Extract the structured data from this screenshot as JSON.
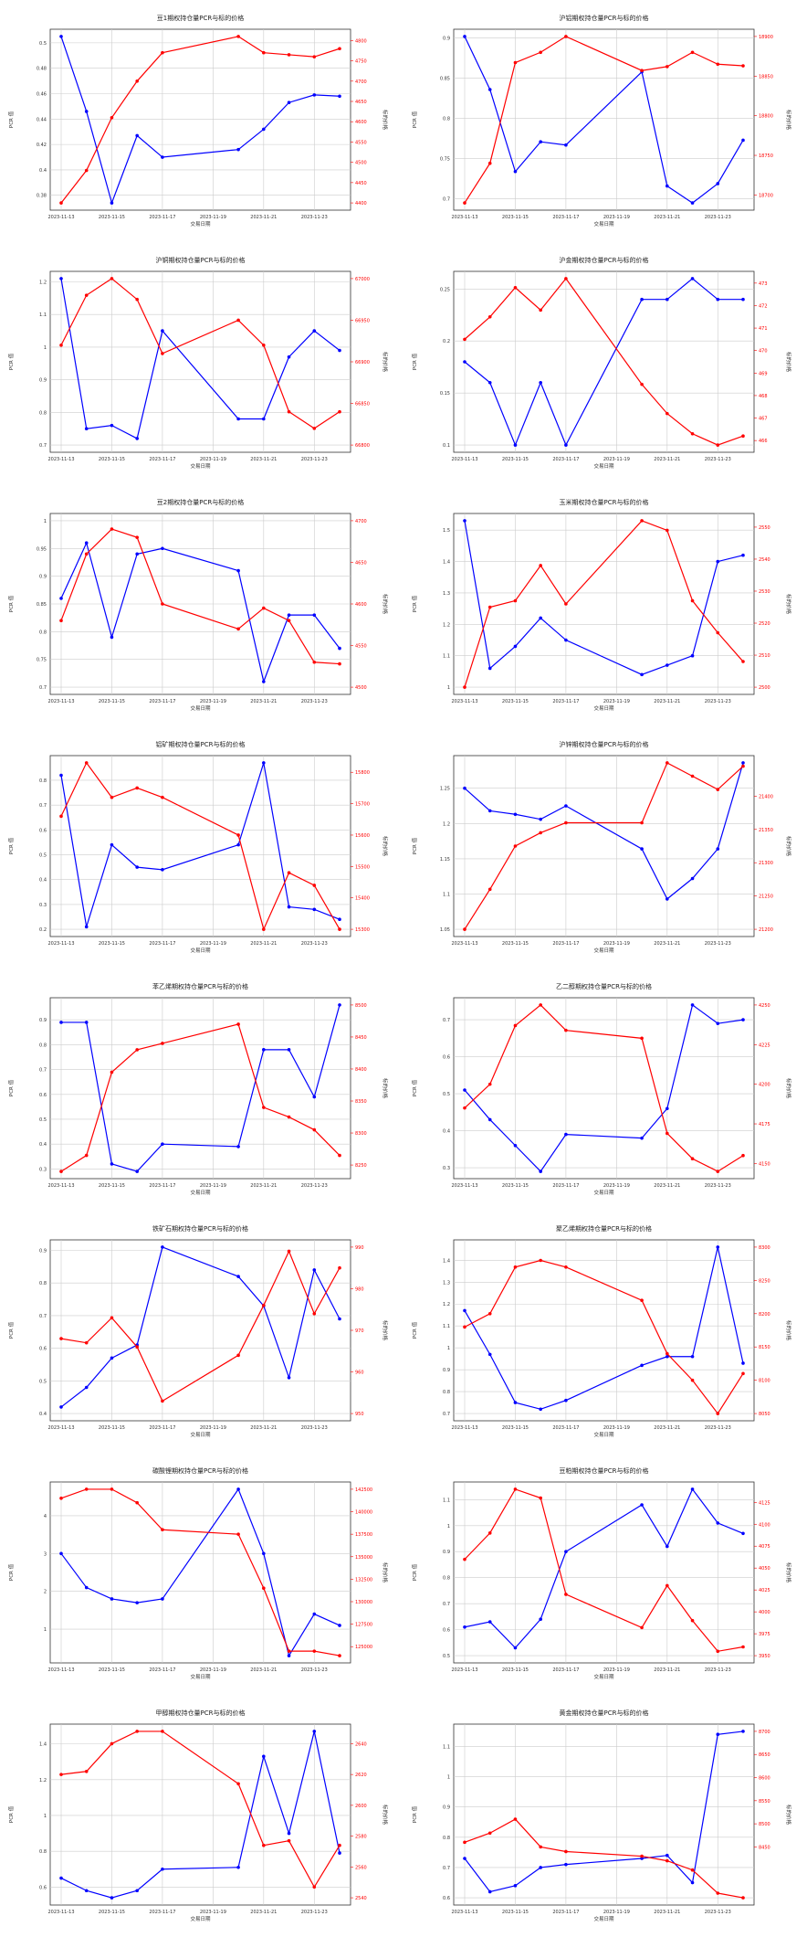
{
  "colors": {
    "left": "#0000ff",
    "right": "#ff0000",
    "grid": "#cccccc",
    "axis": "#333333"
  },
  "common": {
    "xticks": [
      "2023-11-13",
      "2023-11-15",
      "2023-11-17",
      "2023-11-19",
      "2023-11-21",
      "2023-11-23"
    ],
    "xlabel": "交易日期",
    "ylabel_left": "PCR 值",
    "ylabel_right": "标的价格"
  },
  "chart_data": [
    {
      "type": "line",
      "title": "豆1期权持仓量PCR与标的价格",
      "x": [
        "2023-11-13",
        "2023-11-14",
        "2023-11-15",
        "2023-11-16",
        "2023-11-17",
        "2023-11-20",
        "2023-11-21",
        "2023-11-22",
        "2023-11-23",
        "2023-11-24"
      ],
      "left_ticks": [
        0.38,
        0.4,
        0.42,
        0.44,
        0.46,
        0.48,
        0.5
      ],
      "right_ticks": [
        4400,
        4450,
        4500,
        4550,
        4600,
        4650,
        4700,
        4750,
        4800
      ],
      "series": [
        {
          "axis": "left",
          "values": [
            0.505,
            0.446,
            0.374,
            0.427,
            0.41,
            0.416,
            0.432,
            0.453,
            0.459,
            0.458
          ]
        },
        {
          "axis": "right",
          "values": [
            4400,
            4480,
            4610,
            4700,
            4770,
            4810,
            4770,
            4765,
            4760,
            4780
          ]
        }
      ]
    },
    {
      "type": "line",
      "title": "沪铝期权持仓量PCR与标的价格",
      "x": [
        "2023-11-13",
        "2023-11-14",
        "2023-11-15",
        "2023-11-16",
        "2023-11-17",
        "2023-11-20",
        "2023-11-21",
        "2023-11-22",
        "2023-11-23",
        "2023-11-24"
      ],
      "left_ticks": [
        0.7,
        0.75,
        0.8,
        0.85,
        0.9
      ],
      "right_ticks": [
        18700,
        18750,
        18800,
        18850,
        18900
      ],
      "series": [
        {
          "axis": "left",
          "values": [
            0.902,
            0.836,
            0.734,
            0.771,
            0.767,
            0.858,
            0.716,
            0.695,
            0.719,
            0.773
          ]
        },
        {
          "axis": "right",
          "values": [
            18690,
            18740,
            18867,
            18880,
            18900,
            18857,
            18862,
            18880,
            18865,
            18863
          ]
        }
      ]
    },
    {
      "type": "line",
      "title": "沪铜期权持仓量PCR与标的价格",
      "x": [
        "2023-11-13",
        "2023-11-14",
        "2023-11-15",
        "2023-11-16",
        "2023-11-17",
        "2023-11-20",
        "2023-11-21",
        "2023-11-22",
        "2023-11-23",
        "2023-11-24"
      ],
      "left_ticks": [
        0.7,
        0.8,
        0.9,
        1.0,
        1.1,
        1.2
      ],
      "right_ticks": [
        66800,
        66850,
        66900,
        66950,
        67000
      ],
      "series": [
        {
          "axis": "left",
          "values": [
            1.21,
            0.75,
            0.76,
            0.72,
            1.05,
            0.78,
            0.78,
            0.97,
            1.05,
            0.99
          ]
        },
        {
          "axis": "right",
          "values": [
            66920,
            66980,
            67000,
            66975,
            66910,
            66950,
            66920,
            66840,
            66820,
            66840
          ]
        }
      ]
    },
    {
      "type": "line",
      "title": "沪金期权持仓量PCR与标的价格",
      "x": [
        "2023-11-13",
        "2023-11-14",
        "2023-11-15",
        "2023-11-16",
        "2023-11-17",
        "2023-11-20",
        "2023-11-21",
        "2023-11-22",
        "2023-11-23",
        "2023-11-24"
      ],
      "left_ticks": [
        0.1,
        0.15,
        0.2,
        0.25
      ],
      "right_ticks": [
        466,
        467,
        468,
        469,
        470,
        471,
        472,
        473
      ],
      "series": [
        {
          "axis": "left",
          "values": [
            0.18,
            0.16,
            0.1,
            0.16,
            0.1,
            0.24,
            0.24,
            0.26,
            0.24,
            0.24
          ]
        },
        {
          "axis": "right",
          "values": [
            470.5,
            471.5,
            472.8,
            471.8,
            473.2,
            468.5,
            467.2,
            466.3,
            465.8,
            466.2
          ]
        }
      ]
    },
    {
      "type": "line",
      "title": "豆2期权持仓量PCR与标的价格",
      "x": [
        "2023-11-13",
        "2023-11-14",
        "2023-11-15",
        "2023-11-16",
        "2023-11-17",
        "2023-11-20",
        "2023-11-21",
        "2023-11-22",
        "2023-11-23",
        "2023-11-24"
      ],
      "left_ticks": [
        0.7,
        0.75,
        0.8,
        0.85,
        0.9,
        0.95,
        1.0
      ],
      "right_ticks": [
        4500,
        4550,
        4600,
        4650,
        4700
      ],
      "series": [
        {
          "axis": "left",
          "values": [
            0.86,
            0.96,
            0.79,
            0.94,
            0.95,
            0.91,
            0.71,
            0.83,
            0.83,
            0.77
          ]
        },
        {
          "axis": "right",
          "values": [
            4580,
            4660,
            4690,
            4680,
            4600,
            4570,
            4595,
            4580,
            4530,
            4528
          ]
        }
      ]
    },
    {
      "type": "line",
      "title": "玉米期权持仓量PCR与标的价格",
      "x": [
        "2023-11-13",
        "2023-11-14",
        "2023-11-15",
        "2023-11-16",
        "2023-11-17",
        "2023-11-20",
        "2023-11-21",
        "2023-11-22",
        "2023-11-23",
        "2023-11-24"
      ],
      "left_ticks": [
        1.0,
        1.1,
        1.2,
        1.3,
        1.4,
        1.5
      ],
      "right_ticks": [
        2500,
        2510,
        2520,
        2530,
        2540,
        2550
      ],
      "series": [
        {
          "axis": "left",
          "values": [
            1.53,
            1.06,
            1.13,
            1.22,
            1.15,
            1.04,
            1.07,
            1.1,
            1.4,
            1.42
          ]
        },
        {
          "axis": "right",
          "values": [
            2500,
            2525,
            2527,
            2538,
            2526,
            2552,
            2549,
            2527,
            2517,
            2508
          ]
        }
      ]
    },
    {
      "type": "line",
      "title": "铝矿期权持仓量PCR与标的价格",
      "x": [
        "2023-11-13",
        "2023-11-14",
        "2023-11-15",
        "2023-11-16",
        "2023-11-17",
        "2023-11-20",
        "2023-11-21",
        "2023-11-22",
        "2023-11-23",
        "2023-11-24"
      ],
      "left_ticks": [
        0.2,
        0.3,
        0.4,
        0.5,
        0.6,
        0.7,
        0.8
      ],
      "right_ticks": [
        15300,
        15400,
        15500,
        15600,
        15700,
        15800
      ],
      "series": [
        {
          "axis": "left",
          "values": [
            0.82,
            0.21,
            0.54,
            0.45,
            0.44,
            0.54,
            0.87,
            0.29,
            0.28,
            0.24
          ]
        },
        {
          "axis": "right",
          "values": [
            15660,
            15830,
            15720,
            15750,
            15720,
            15600,
            15300,
            15480,
            15440,
            15300
          ]
        }
      ]
    },
    {
      "type": "line",
      "title": "沪锌期权持仓量PCR与标的价格",
      "x": [
        "2023-11-13",
        "2023-11-14",
        "2023-11-15",
        "2023-11-16",
        "2023-11-17",
        "2023-11-20",
        "2023-11-21",
        "2023-11-22",
        "2023-11-23",
        "2023-11-24"
      ],
      "left_ticks": [
        1.05,
        1.1,
        1.15,
        1.2,
        1.25
      ],
      "right_ticks": [
        21200,
        21250,
        21300,
        21350,
        21400
      ],
      "series": [
        {
          "axis": "left",
          "values": [
            1.25,
            1.218,
            1.213,
            1.206,
            1.225,
            1.164,
            1.093,
            1.122,
            1.164,
            1.286
          ]
        },
        {
          "axis": "right",
          "values": [
            21200,
            21260,
            21325,
            21345,
            21360,
            21360,
            21450,
            21430,
            21410,
            21445
          ]
        }
      ]
    },
    {
      "type": "line",
      "title": "苯乙烯期权持仓量PCR与标的价格",
      "x": [
        "2023-11-13",
        "2023-11-14",
        "2023-11-15",
        "2023-11-16",
        "2023-11-17",
        "2023-11-20",
        "2023-11-21",
        "2023-11-22",
        "2023-11-23",
        "2023-11-24"
      ],
      "left_ticks": [
        0.3,
        0.4,
        0.5,
        0.6,
        0.7,
        0.8,
        0.9
      ],
      "right_ticks": [
        8250,
        8300,
        8350,
        8400,
        8450,
        8500
      ],
      "series": [
        {
          "axis": "left",
          "values": [
            0.89,
            0.89,
            0.32,
            0.29,
            0.4,
            0.39,
            0.78,
            0.78,
            0.59,
            0.96
          ]
        },
        {
          "axis": "right",
          "values": [
            8240,
            8265,
            8395,
            8430,
            8440,
            8470,
            8340,
            8325,
            8305,
            8265
          ]
        }
      ]
    },
    {
      "type": "line",
      "title": "乙二醇期权持仓量PCR与标的价格",
      "x": [
        "2023-11-13",
        "2023-11-14",
        "2023-11-15",
        "2023-11-16",
        "2023-11-17",
        "2023-11-20",
        "2023-11-21",
        "2023-11-22",
        "2023-11-23",
        "2023-11-24"
      ],
      "left_ticks": [
        0.3,
        0.4,
        0.5,
        0.6,
        0.7
      ],
      "right_ticks": [
        4150,
        4175,
        4200,
        4225,
        4250
      ],
      "series": [
        {
          "axis": "left",
          "values": [
            0.51,
            0.43,
            0.36,
            0.29,
            0.39,
            0.38,
            0.46,
            0.74,
            0.69,
            0.7
          ]
        },
        {
          "axis": "right",
          "values": [
            4185,
            4200,
            4237,
            4250,
            4234,
            4229,
            4169,
            4153,
            4145,
            4155
          ]
        }
      ]
    },
    {
      "type": "line",
      "title": "铁矿石期权持仓量PCR与标的价格",
      "x": [
        "2023-11-13",
        "2023-11-14",
        "2023-11-15",
        "2023-11-16",
        "2023-11-17",
        "2023-11-20",
        "2023-11-21",
        "2023-11-22",
        "2023-11-23",
        "2023-11-24"
      ],
      "left_ticks": [
        0.4,
        0.5,
        0.6,
        0.7,
        0.8,
        0.9
      ],
      "right_ticks": [
        950,
        960,
        970,
        980,
        990
      ],
      "series": [
        {
          "axis": "left",
          "values": [
            0.42,
            0.48,
            0.57,
            0.61,
            0.91,
            0.82,
            0.73,
            0.51,
            0.84,
            0.69
          ]
        },
        {
          "axis": "right",
          "values": [
            968,
            967,
            973,
            966,
            953,
            964,
            976,
            989,
            974,
            985
          ]
        }
      ]
    },
    {
      "type": "line",
      "title": "聚乙烯期权持仓量PCR与标的价格",
      "x": [
        "2023-11-13",
        "2023-11-14",
        "2023-11-15",
        "2023-11-16",
        "2023-11-17",
        "2023-11-20",
        "2023-11-21",
        "2023-11-22",
        "2023-11-23",
        "2023-11-24"
      ],
      "left_ticks": [
        0.7,
        0.8,
        0.9,
        1.0,
        1.1,
        1.2,
        1.3,
        1.4
      ],
      "right_ticks": [
        8050,
        8100,
        8150,
        8200,
        8250,
        8300
      ],
      "series": [
        {
          "axis": "left",
          "values": [
            1.17,
            0.97,
            0.75,
            0.72,
            0.76,
            0.92,
            0.96,
            0.96,
            1.46,
            0.93
          ]
        },
        {
          "axis": "right",
          "values": [
            8180,
            8200,
            8270,
            8280,
            8270,
            8220,
            8140,
            8100,
            8050,
            8110
          ]
        }
      ]
    },
    {
      "type": "line",
      "title": "碳酸锂期权持仓量PCR与标的价格",
      "x": [
        "2023-11-13",
        "2023-11-14",
        "2023-11-15",
        "2023-11-16",
        "2023-11-17",
        "2023-11-20",
        "2023-11-21",
        "2023-11-22",
        "2023-11-23",
        "2023-11-24"
      ],
      "left_ticks": [
        1,
        2,
        3,
        4
      ],
      "right_ticks": [
        125000,
        127500,
        130000,
        132500,
        135000,
        137500,
        140000,
        142500
      ],
      "series": [
        {
          "axis": "left",
          "values": [
            3.0,
            2.1,
            1.8,
            1.7,
            1.8,
            4.7,
            3.0,
            0.3,
            1.4,
            1.1
          ]
        },
        {
          "axis": "right",
          "values": [
            141500,
            142500,
            142500,
            141000,
            138000,
            137500,
            131500,
            124500,
            124500,
            124000
          ]
        }
      ]
    },
    {
      "type": "line",
      "title": "豆粕期权持仓量PCR与标的价格",
      "x": [
        "2023-11-13",
        "2023-11-14",
        "2023-11-15",
        "2023-11-16",
        "2023-11-17",
        "2023-11-20",
        "2023-11-21",
        "2023-11-22",
        "2023-11-23",
        "2023-11-24"
      ],
      "left_ticks": [
        0.5,
        0.6,
        0.7,
        0.8,
        0.9,
        1.0,
        1.1
      ],
      "right_ticks": [
        3950,
        3975,
        4000,
        4025,
        4050,
        4075,
        4100,
        4125
      ],
      "series": [
        {
          "axis": "left",
          "values": [
            0.61,
            0.63,
            0.53,
            0.64,
            0.9,
            1.08,
            0.92,
            1.14,
            1.01,
            0.97
          ]
        },
        {
          "axis": "right",
          "values": [
            4060,
            4090,
            4140,
            4130,
            4020,
            3982,
            4030,
            3990,
            3955,
            3960
          ]
        }
      ]
    },
    {
      "type": "line",
      "title": "甲醇期权持仓量PCR与标的价格",
      "x": [
        "2023-11-13",
        "2023-11-14",
        "2023-11-15",
        "2023-11-16",
        "2023-11-17",
        "2023-11-20",
        "2023-11-21",
        "2023-11-22",
        "2023-11-23",
        "2023-11-24"
      ],
      "left_ticks": [
        0.6,
        0.8,
        1.0,
        1.2,
        1.4
      ],
      "right_ticks": [
        2540,
        2560,
        2580,
        2600,
        2620,
        2640
      ],
      "series": [
        {
          "axis": "left",
          "values": [
            0.65,
            0.58,
            0.54,
            0.58,
            0.7,
            0.71,
            1.33,
            0.9,
            1.47,
            0.79
          ]
        },
        {
          "axis": "right",
          "values": [
            2620,
            2622,
            2640,
            2648,
            2648,
            2614,
            2574,
            2577,
            2547,
            2574
          ]
        }
      ]
    },
    {
      "type": "line",
      "title": "黄金期权持仓量PCR与标的价格",
      "x": [
        "2023-11-13",
        "2023-11-14",
        "2023-11-15",
        "2023-11-16",
        "2023-11-17",
        "2023-11-20",
        "2023-11-21",
        "2023-11-22",
        "2023-11-23",
        "2023-11-24"
      ],
      "left_ticks": [
        0.6,
        0.7,
        0.8,
        0.9,
        1.0,
        1.1
      ],
      "right_ticks": [
        8450,
        8500,
        8550,
        8600,
        8650,
        8700
      ],
      "series": [
        {
          "axis": "left",
          "values": [
            0.73,
            0.62,
            0.64,
            0.7,
            0.71,
            0.73,
            0.74,
            0.65,
            1.14,
            1.15
          ]
        },
        {
          "axis": "right",
          "values": [
            8460,
            8480,
            8510,
            8450,
            8440,
            8430,
            8420,
            8400,
            8350,
            8340
          ]
        }
      ]
    }
  ]
}
